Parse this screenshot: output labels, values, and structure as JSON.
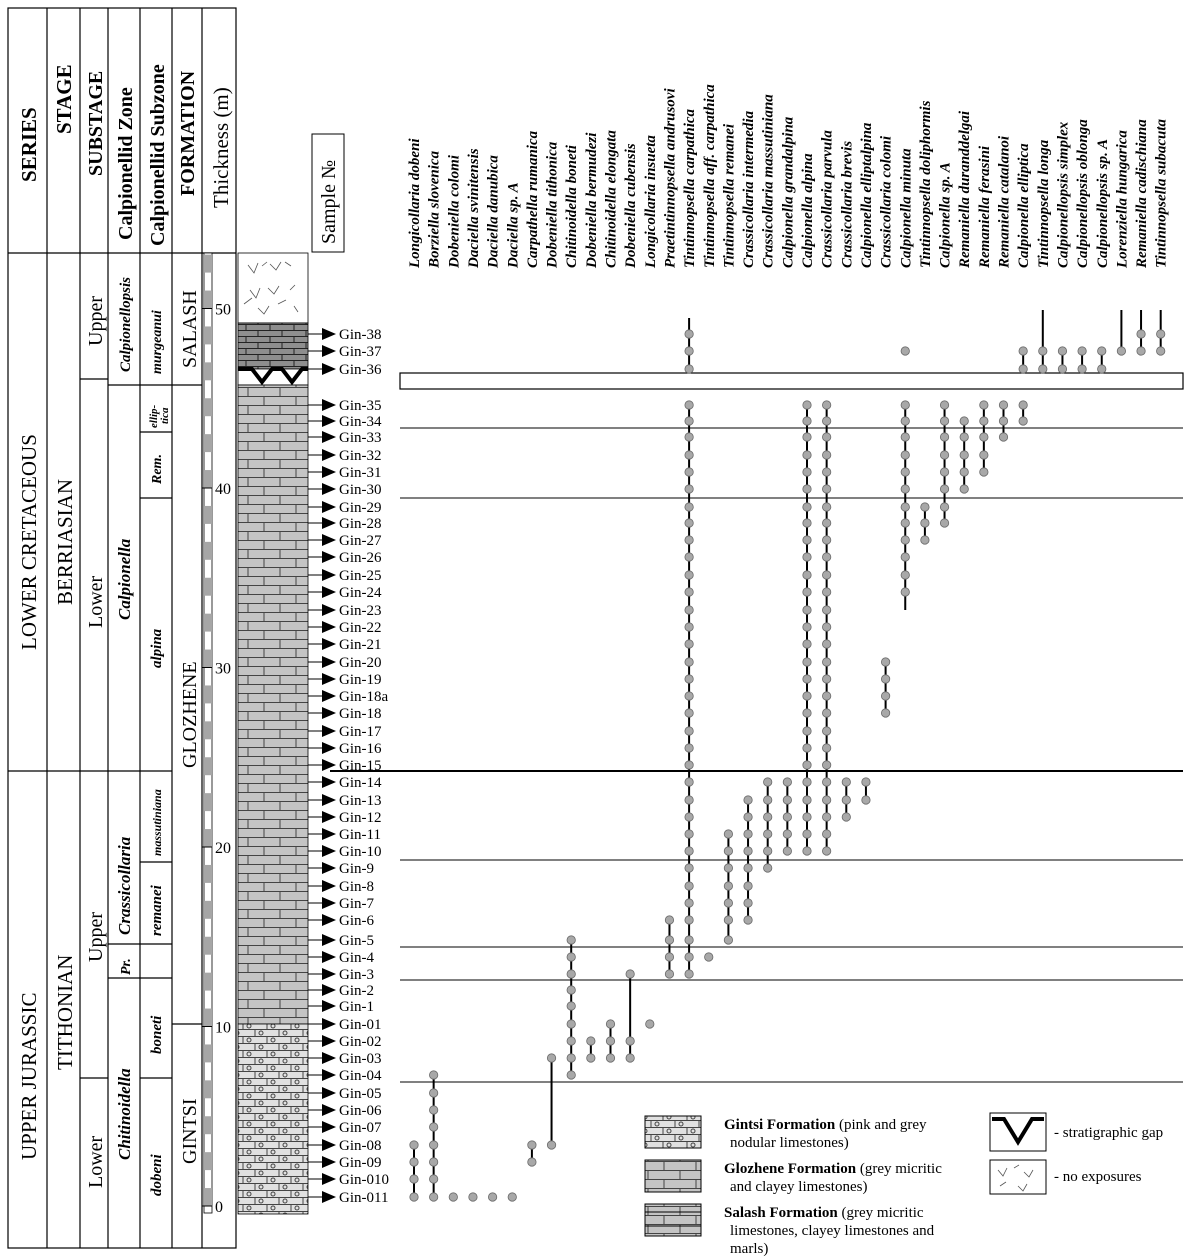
{
  "headers": {
    "series": "SERIES",
    "stage": "STAGE",
    "substage": "SUBSTAGE",
    "zone": "Calpionellid Zone",
    "subzone": "Calpionellid Subzone",
    "formation": "FORMATION",
    "thickness": "Thickness (m)",
    "sample": "Sample №"
  },
  "series": [
    "LOWER CRETACEOUS",
    "UPPER JURASSIC"
  ],
  "stages": [
    "BERRIASIAN",
    "TITHONIAN"
  ],
  "substages": [
    "Upper",
    "Lower",
    "Upper",
    "Lower"
  ],
  "zones": [
    "Calpionellopsis",
    "Calpionella",
    "Crassicollaria",
    "Pr.",
    "Chitinoidella"
  ],
  "subzones": [
    "murgeanui",
    "ellip-",
    "tica",
    "Rem.",
    "alpina",
    "massutiniana",
    "remanei",
    "boneti",
    "dobeni"
  ],
  "formations": [
    "SALASH",
    "GLOZHENE",
    "GINTSI"
  ],
  "thickness_ticks": [
    "0",
    "10",
    "20",
    "30",
    "40",
    "50"
  ],
  "samples": [
    "Gin-38",
    "Gin-37",
    "Gin-36",
    "Gin-35",
    "Gin-34",
    "Gin-33",
    "Gin-32",
    "Gin-31",
    "Gin-30",
    "Gin-29",
    "Gin-28",
    "Gin-27",
    "Gin-26",
    "Gin-25",
    "Gin-24",
    "Gin-23",
    "Gin-22",
    "Gin-21",
    "Gin-20",
    "Gin-19",
    "Gin-18a",
    "Gin-18",
    "Gin-17",
    "Gin-16",
    "Gin-15",
    "Gin-14",
    "Gin-13",
    "Gin-12",
    "Gin-11",
    "Gin-10",
    "Gin-9",
    "Gin-8",
    "Gin-7",
    "Gin-6",
    "Gin-5",
    "Gin-4",
    "Gin-3",
    "Gin-2",
    "Gin-1",
    "Gin-01",
    "Gin-02",
    "Gin-03",
    "Gin-04",
    "Gin-05",
    "Gin-06",
    "Gin-07",
    "Gin-08",
    "Gin-09",
    "Gin-010",
    "Gin-011"
  ],
  "taxa": [
    "Longicollaria dobeni",
    "Borziella slovenica",
    "Dobeniella colomi",
    "Daciella svinitensis",
    "Daciella danubica",
    "Daciella sp. A",
    "Carpathella rumanica",
    "Dobeniella tithonica",
    "Chitinoidella boneti",
    "Dobeniella bermudezi",
    "Chitinoidella elongata",
    "Dobeniella cubensis",
    "Longicollaria insueta",
    "Praetintinnopsella andrusovi",
    "Tintinnopsella carpathica",
    "Tintinnopsella aff. carpathica",
    "Tintinnopsella remanei",
    "Crassicollaria intermedia",
    "Crassicollaria massutiniana",
    "Calpionella grandalpina",
    "Calpionella alpina",
    "Crassicollaria parvula",
    "Crassicollaria brevis",
    "Calpionella elliptalpina",
    "Crassicollaria colomi",
    "Calpionella minuta",
    "Tintinnopsella doliphormis",
    "Calpionella sp. A",
    "Remaniella duranddelgai",
    "Remaniella ferasini",
    "Remaniella catalanoi",
    "Calpionella elliptica",
    "Tintinnopsella longa",
    "Calpionellopsis simplex",
    "Calpionellopsis oblonga",
    "Calpionellopsis sp. A",
    "Lorenziella hungarica",
    "Remaniella cadischiana",
    "Tintinnopsella subacuta"
  ],
  "legend": [
    {
      "name": "Gintsi Formation",
      "desc": " (pink and grey",
      "desc2": "nodular limestones)"
    },
    {
      "name": "Glozhene Formation",
      "desc": " (grey micritic",
      "desc2": "and clayey limestones)"
    },
    {
      "name": "Salash Formation",
      "desc": " (grey micritic",
      "desc2": "limestones, clayey limestones and",
      "desc3": "marls)"
    },
    {
      "name": "",
      "desc": "- stratigraphic gap"
    },
    {
      "name": "",
      "desc": "- no exposures"
    }
  ],
  "colors": {
    "line": "#000000",
    "dot": "#a8a8a8",
    "column": "#c8c8c8",
    "gintsi": "#dcdcdc",
    "salash": "#9a9a9a"
  }
}
